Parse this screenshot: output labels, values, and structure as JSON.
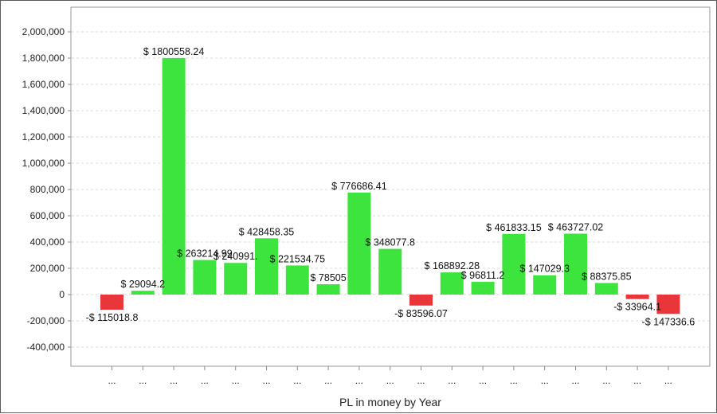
{
  "chart_data": {
    "type": "bar",
    "title": "",
    "xlabel": "PL in money by Year",
    "ylabel": "",
    "ylim": [
      -500000,
      2100000
    ],
    "yticks": [
      2000000,
      1800000,
      1600000,
      1400000,
      1200000,
      1000000,
      800000,
      600000,
      400000,
      200000,
      0,
      -200000,
      -400000
    ],
    "ytick_labels": [
      "2,000,000",
      "1,800,000",
      "1,600,000",
      "1,400,000",
      "1,200,000",
      "1,000,000",
      "800,000",
      "600,000",
      "400,000",
      "200,000",
      "0",
      "-200,000",
      "-400,000"
    ],
    "grid": true,
    "categories": [
      "...",
      "...",
      "...",
      "...",
      "...",
      "...",
      "...",
      "...",
      "...",
      "...",
      "...",
      "...",
      "...",
      "...",
      "...",
      "...",
      "...",
      "...",
      "..."
    ],
    "values": [
      -115018.8,
      29094.2,
      1800558.24,
      263214.99,
      240991,
      428458.35,
      221534.75,
      78505,
      776686.41,
      348077.8,
      -83596.07,
      168892.28,
      96811.2,
      461833.15,
      147029.3,
      463727.02,
      88375.85,
      -33964.1,
      -147336.6
    ],
    "data_labels": [
      "-$ 115018.8",
      "$ 29094.2",
      "$ 1800558.24",
      "$ 263214.99",
      "$ 240991.",
      "$ 428458.35",
      "$ 221534.75",
      "$ 78505",
      "$ 776686.41",
      "$ 348077.8",
      "-$ 83596.07",
      "$ 168892.28",
      "$ 96811.2",
      "$ 461833.15",
      "$ 147029.3",
      "$ 463727.02",
      "$ 88375.85",
      "-$ 33964.1",
      "-$ 147336.6"
    ],
    "colors": {
      "positive": "#3ee43e",
      "negative": "#e8363a",
      "grid": "#d8d8d8",
      "axis": "#888888"
    }
  }
}
